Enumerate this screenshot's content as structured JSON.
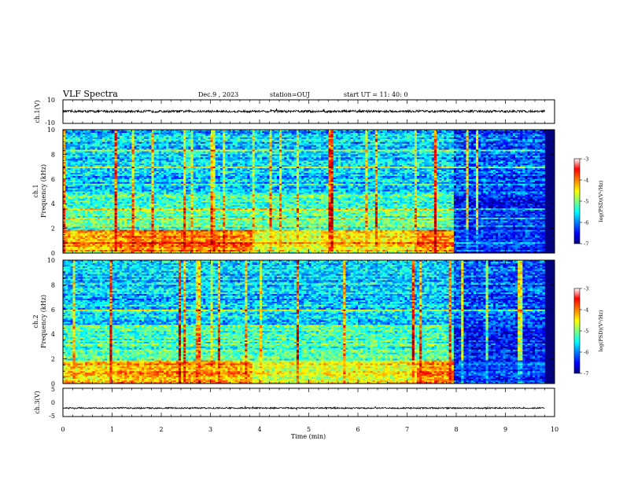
{
  "header": {
    "title": "VLF Spectra",
    "date": "Dec.9 , 2023",
    "station": "station=OUJ",
    "start_ut": "start UT = 11: 40: 0"
  },
  "chart_data": [
    {
      "type": "line",
      "name": "ch1-waveform",
      "ylabel": "ch.1(V)",
      "ylim": [
        -10,
        10
      ],
      "yticks": [
        "10",
        "-10"
      ],
      "xlim": [
        0,
        10
      ],
      "x_data_extent": [
        0,
        9.8
      ],
      "mean": 0.2,
      "noise_amplitude": 1.0
    },
    {
      "type": "heatmap",
      "name": "ch1-spectrogram",
      "ylabel": "ch.1",
      "ylabel2": "Frequency (kHz)",
      "ylim": [
        0,
        10
      ],
      "yticks": [
        "0",
        "2",
        "4",
        "6",
        "8",
        "10"
      ],
      "xlim": [
        0,
        10
      ],
      "x_data_extent": [
        0,
        9.8
      ],
      "colorbar": {
        "label": "log(PSD)(V²/Hz)",
        "range": [
          -7,
          -3
        ],
        "ticks": [
          "-3",
          "-4",
          "-5",
          "-6",
          "-7"
        ]
      },
      "segments": [
        {
          "t": [
            0,
            1.1
          ],
          "low_band_level": -4.2
        },
        {
          "t": [
            1.1,
            3.85
          ],
          "low_band_level": -4.0
        },
        {
          "t": [
            3.85,
            5.25
          ],
          "low_band_level": -4.6
        },
        {
          "t": [
            5.25,
            7.2
          ],
          "low_band_level": -4.4
        },
        {
          "t": [
            7.2,
            7.95
          ],
          "low_band_level": -4.0
        },
        {
          "t": [
            7.95,
            9.8
          ],
          "low_band_level": -6.3
        }
      ]
    },
    {
      "type": "heatmap",
      "name": "ch2-spectrogram",
      "ylabel": "ch.2",
      "ylabel2": "Frequency (kHz)",
      "ylim": [
        0,
        10
      ],
      "yticks": [
        "0",
        "2",
        "4",
        "6",
        "8",
        "10"
      ],
      "xlim": [
        0,
        10
      ],
      "x_data_extent": [
        0,
        9.8
      ],
      "colorbar": {
        "label": "log(PSD)(V²/Hz)",
        "range": [
          -7,
          -3
        ],
        "ticks": [
          "-3",
          "-4",
          "-5",
          "-6",
          "-7"
        ]
      },
      "segments": [
        {
          "t": [
            0,
            1.1
          ],
          "low_band_level": -4.3
        },
        {
          "t": [
            1.1,
            3.85
          ],
          "low_band_level": -4.1
        },
        {
          "t": [
            3.85,
            5.25
          ],
          "low_band_level": -4.6
        },
        {
          "t": [
            5.25,
            7.2
          ],
          "low_band_level": -4.5
        },
        {
          "t": [
            7.2,
            7.95
          ],
          "low_band_level": -4.0
        },
        {
          "t": [
            7.95,
            9.8
          ],
          "low_band_level": -6.2
        }
      ]
    },
    {
      "type": "line",
      "name": "ch3-waveform",
      "ylabel": "ch.3(V)",
      "ylim": [
        -5,
        5
      ],
      "yticks": [
        "5",
        "0",
        "-5"
      ],
      "xlim": [
        0,
        10
      ],
      "x_data_extent": [
        0,
        9.8
      ],
      "mean": -2.0,
      "noise_amplitude": 0.25
    }
  ],
  "xaxis": {
    "label": "Time (min)",
    "ticks": [
      "0",
      "1",
      "2",
      "3",
      "4",
      "5",
      "6",
      "7",
      "8",
      "9",
      "10"
    ],
    "range": [
      0,
      10
    ]
  },
  "colors": {
    "jet": [
      "#00007f",
      "#0000ff",
      "#007fff",
      "#00ffff",
      "#7fff7f",
      "#ffff00",
      "#ff7f00",
      "#ff0000",
      "#7f0000"
    ]
  }
}
